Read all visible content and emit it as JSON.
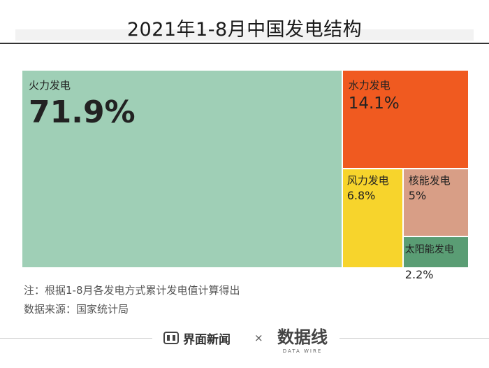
{
  "chart_data": {
    "type": "treemap",
    "title": "2021年1-8月中国发电结构",
    "unit": "%",
    "items": [
      {
        "label": "火力发电",
        "value": 71.9,
        "display": "71.9%",
        "color": "#9fcfb6"
      },
      {
        "label": "水力发电",
        "value": 14.1,
        "display": "14.1%",
        "color": "#f05a20"
      },
      {
        "label": "风力发电",
        "value": 6.8,
        "display": "6.8%",
        "color": "#f7d42c"
      },
      {
        "label": "核能发电",
        "value": 5,
        "display": "5%",
        "color": "#d89e86"
      },
      {
        "label": "太阳能发电",
        "value": 2.2,
        "display": "2.2%",
        "color": "#5a9d74"
      }
    ]
  },
  "notes": {
    "note": "注：根据1-8月各发电方式累计发电值计算得出",
    "source": "数据来源：国家统计局"
  },
  "footer": {
    "brand": "界面新闻",
    "times": "×",
    "partner_logo": "数据线",
    "partner_sub": "DATA WIRE"
  }
}
